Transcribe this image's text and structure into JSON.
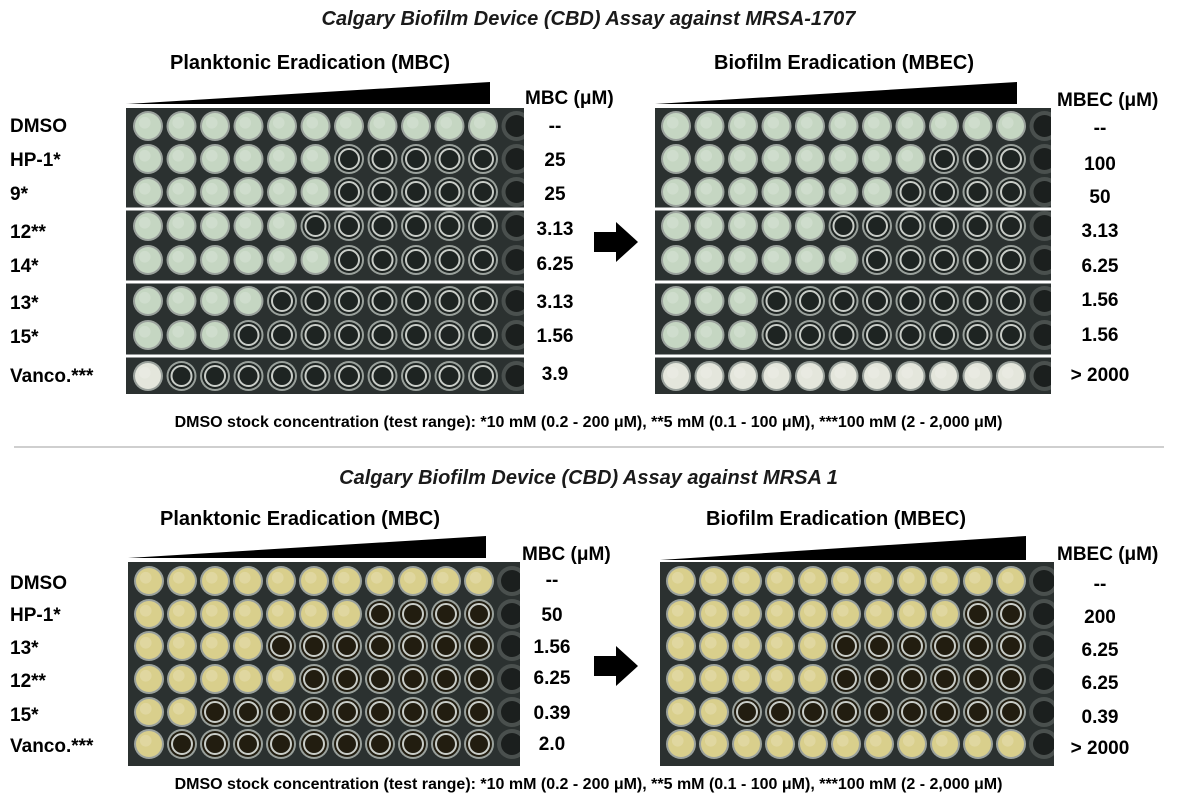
{
  "colors": {
    "plate_bg": "#2b3130",
    "well_rim": "#9aa19c",
    "green_fill": "#c5d6c2",
    "green_dark": "#1e2422",
    "yellow_fill": "#d9cf8c",
    "yellow_dark": "#221d10",
    "bw_fill": "#e4e6dc"
  },
  "panel1": {
    "title": "Calgary Biofilm Device (CBD) Assay against MRSA-1707",
    "left_header": "Planktonic Eradication (MBC)",
    "right_header": "Biofilm Eradication (MBEC)",
    "mbc_unit": "MBC (μM)",
    "mbec_unit": "MBEC (μM)",
    "labels": [
      "DMSO",
      "HP-1*",
      "9*",
      "12**",
      "14*",
      "13*",
      "15*",
      "Vanco.***"
    ],
    "mbc": [
      "--",
      "25",
      "25",
      "3.13",
      "6.25",
      "3.13",
      "1.56",
      "3.9"
    ],
    "mbec": [
      "--",
      "100",
      "50",
      "3.13",
      "6.25",
      "1.56",
      "1.56",
      "> 2000"
    ],
    "mbc_clear_wells": [
      0,
      5,
      5,
      6,
      5,
      7,
      8,
      10
    ],
    "mbec_clear_wells": [
      0,
      3,
      4,
      6,
      5,
      8,
      8,
      0
    ],
    "footnote": "DMSO stock concentration (test range): *10 mM (0.2 - 200 μM), **5 mM (0.1 - 100 μM), ***100 mM (2 - 2,000 μM)"
  },
  "panel2": {
    "title": "Calgary Biofilm Device (CBD) Assay against MRSA 1",
    "left_header": "Planktonic Eradication (MBC)",
    "right_header": "Biofilm Eradication (MBEC)",
    "mbc_unit": "MBC (μM)",
    "mbec_unit": "MBEC (μM)",
    "labels": [
      "DMSO",
      "HP-1*",
      "13*",
      "12**",
      "15*",
      "Vanco.***"
    ],
    "mbc": [
      "--",
      "50",
      "1.56",
      "6.25",
      "0.39",
      "2.0"
    ],
    "mbec": [
      "--",
      "200",
      "6.25",
      "6.25",
      "0.39",
      "> 2000"
    ],
    "mbc_clear_wells": [
      0,
      4,
      7,
      6,
      9,
      10
    ],
    "mbec_clear_wells": [
      0,
      2,
      6,
      6,
      9,
      0
    ],
    "footnote": "DMSO stock concentration (test range): *10 mM (0.2 - 200 μM), **5 mM (0.1 - 100 μM), ***100 mM (2 - 2,000 μM)"
  }
}
